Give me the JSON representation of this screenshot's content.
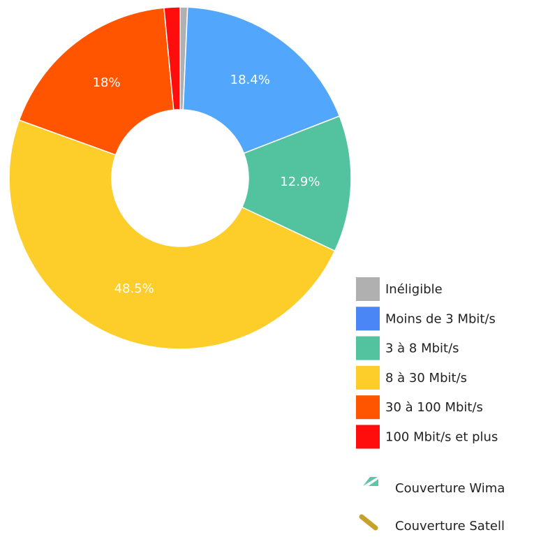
{
  "chart_data": {
    "type": "pie",
    "categories": [
      "Inéligible",
      "Moins de 3 Mbit/s",
      "3 à 8 Mbit/s",
      "8 à 30 Mbit/s",
      "30 à 100 Mbit/s",
      "100 Mbit/s et plus"
    ],
    "values": [
      0.7,
      18.4,
      12.9,
      48.5,
      18,
      1.5
    ],
    "value_labels": [
      null,
      "18.4%",
      "12.9%",
      "48.5%",
      "18%",
      null
    ],
    "colors": [
      "#b0b0b0",
      "#52a6fb",
      "#52c29f",
      "#fdcd2a",
      "#ff5500",
      "#ff0d0d"
    ],
    "legend_colors": [
      "#b0b0b0",
      "#4b86f7",
      "#52c29f",
      "#fdcd2a",
      "#ff5500",
      "#ff0d0d"
    ],
    "extra_legend": [
      "Couverture Wima",
      "Couverture Satell"
    ],
    "legend": "bottom-right"
  }
}
